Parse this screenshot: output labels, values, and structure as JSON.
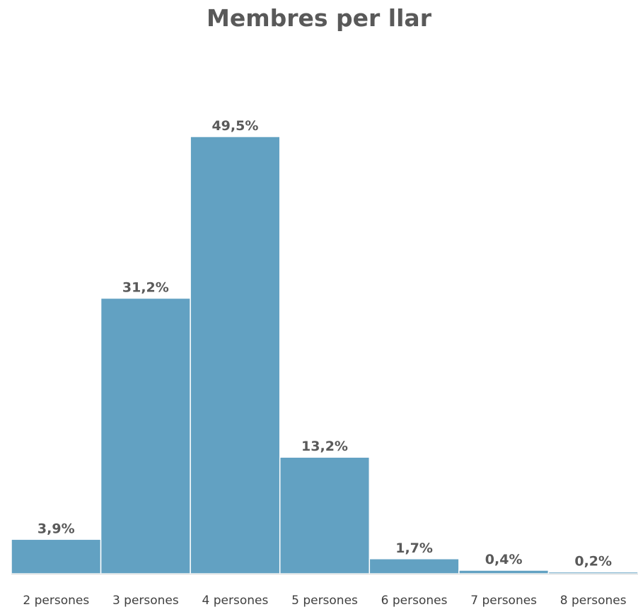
{
  "chart_data": {
    "type": "bar",
    "title": "Membres per llar",
    "categories": [
      "2 persones",
      "3 persones",
      "4 persones",
      "5 persones",
      "6 persones",
      "7 persones",
      "8 persones"
    ],
    "values": [
      3.9,
      31.2,
      49.5,
      13.2,
      1.7,
      0.4,
      0.2
    ],
    "data_labels": [
      "3,9%",
      "31,2%",
      "49,5%",
      "13,2%",
      "1,7%",
      "0,4%",
      "0,2%"
    ],
    "xlabel": "",
    "ylabel": "",
    "ylim": [
      0,
      50
    ],
    "grid": false,
    "legend": "none",
    "colors": {
      "bar": "#62A1C2",
      "title": "#595959",
      "data_label": "#595959",
      "tick_label": "#404040",
      "axis": "#D9D9D9"
    }
  }
}
